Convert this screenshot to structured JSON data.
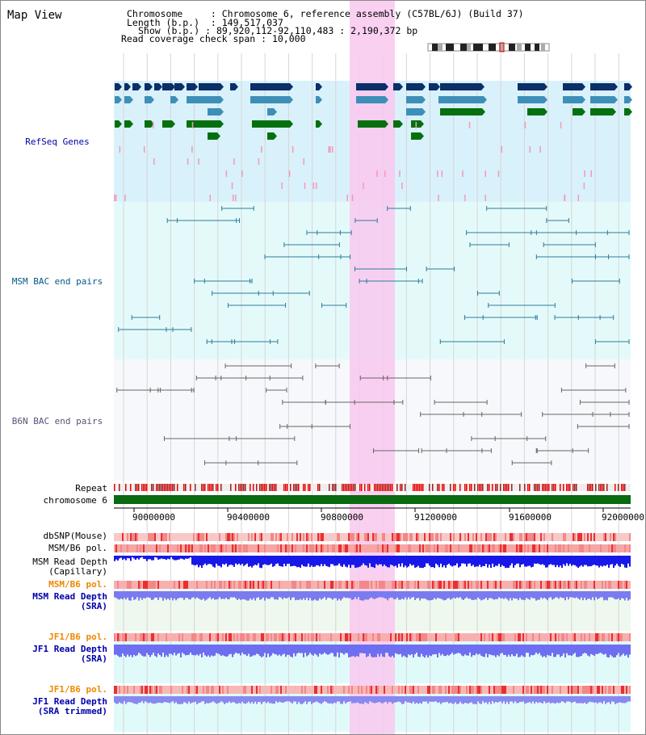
{
  "page_title": "Map View",
  "info": {
    "chromosome_key": "Chromosome",
    "chromosome_val": "Chromosome 6, reference assembly (C57BL/6J) (Build 37)",
    "length_key": "Length (b.p.)",
    "length_val": "149,517,037",
    "show_key": "Show (b.p.)",
    "show_val": "89,920,112-92,110,483 : 2,190,372 bp",
    "coverage_key": "Read coverage check span",
    "coverage_val": "10,000"
  },
  "tracks": {
    "refseq": "RefSeq Genes",
    "msm_bac": "MSM BAC end pairs",
    "b6n_bac": "B6N BAC end pairs",
    "repeat": "Repeat",
    "chromosome": "chromosome 6",
    "dbsnp": "dbSNP(Mouse)",
    "msm_b6_pol_1": "MSM/B6 pol.",
    "msm_depth_cap_1": "MSM Read Depth",
    "msm_depth_cap_2": "(Capillary)",
    "msm_b6_pol_2": "MSM/B6 pol.",
    "msm_depth_sra_1": "MSM Read Depth",
    "msm_depth_sra_2": "(SRA)",
    "jf1_b6_pol_1": "JF1/B6 pol.",
    "jf1_depth_sra_1": "JF1 Read Depth",
    "jf1_depth_sra_2": "(SRA)",
    "jf1_b6_pol_2": "JF1/B6 pol.",
    "jf1_depth_trim_1": "JF1 Read Depth",
    "jf1_depth_trim_2": "(SRA trimmed)"
  },
  "axis": {
    "ticks": [
      "90000000",
      "90400000",
      "90800000",
      "91200000",
      "91600000",
      "92000000"
    ]
  },
  "colors": {
    "highlight": "#f9c8ee",
    "refseq_bg": "#d9f1fb",
    "msm_bg": "#e4fafa",
    "b6n_bg": "#f6f8fb",
    "gene_dark": "#0b2f68",
    "gene_mid": "#3e8fb8",
    "gene_green": "#07700e",
    "msm_line": "#2e7c9a",
    "b6n_line": "#666666",
    "label_blue": "#0000aa",
    "label_orange": "#ee8800"
  }
}
